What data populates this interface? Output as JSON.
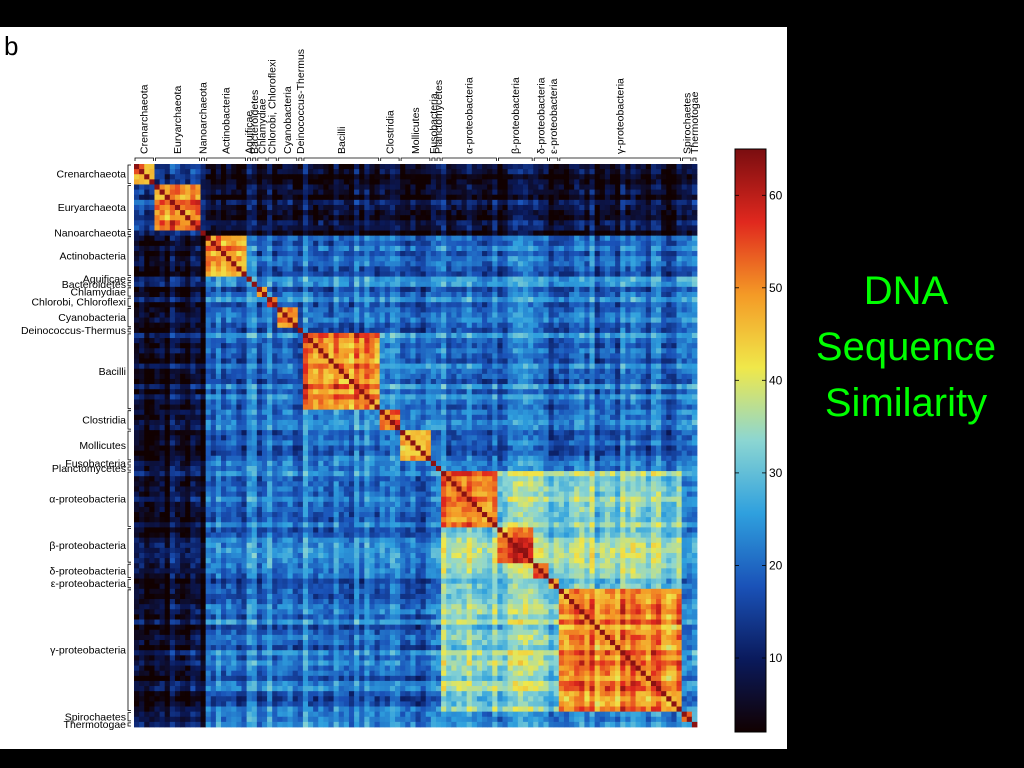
{
  "panel_label": "b",
  "title_lines": [
    "DNA",
    "Sequence",
    "Similarity"
  ],
  "chart_data": {
    "type": "heatmap",
    "groups": [
      {
        "label": "Crenarchaeota",
        "size": 4
      },
      {
        "label": "Euryarchaeota",
        "size": 9
      },
      {
        "label": "Nanoarchaeota",
        "size": 1
      },
      {
        "label": "Actinobacteria",
        "size": 8
      },
      {
        "label": "Aquificae",
        "size": 1
      },
      {
        "label": "Bacteroidetes",
        "size": 1
      },
      {
        "label": "Chlamydiae",
        "size": 2
      },
      {
        "label": "Chlorobi, Chloroflexi",
        "size": 2
      },
      {
        "label": "Cyanobacteria",
        "size": 4
      },
      {
        "label": "Deinococcus-Thermus",
        "size": 1
      },
      {
        "label": "Bacilli",
        "size": 15
      },
      {
        "label": "Clostridia",
        "size": 4
      },
      {
        "label": "Mollicutes",
        "size": 6
      },
      {
        "label": "Fusobacteria",
        "size": 1
      },
      {
        "label": "Planctomycetes",
        "size": 1
      },
      {
        "label": "α-proteobacteria",
        "size": 11
      },
      {
        "label": "β-proteobacteria",
        "size": 7
      },
      {
        "label": "δ-proteobacteria",
        "size": 3
      },
      {
        "label": "ε-proteobacteria",
        "size": 2
      },
      {
        "label": "γ-proteobacteria",
        "size": 24
      },
      {
        "label": "Spirochaetes",
        "size": 2
      },
      {
        "label": "Thermotogae",
        "size": 1
      }
    ],
    "colorbar": {
      "ticks": [
        10,
        20,
        30,
        40,
        50,
        60
      ],
      "range": [
        2,
        65
      ],
      "colors": [
        "#110000",
        "#0a1a5c",
        "#1a52b8",
        "#2fa0de",
        "#8cd6d2",
        "#f0e84a",
        "#f49a26",
        "#e0281e",
        "#7a0d10"
      ]
    },
    "colors": {
      "background_low": "#08174a",
      "between_groups": "#143c85",
      "diagonal": "#4a0608",
      "group_divider": "#d8b860"
    }
  }
}
